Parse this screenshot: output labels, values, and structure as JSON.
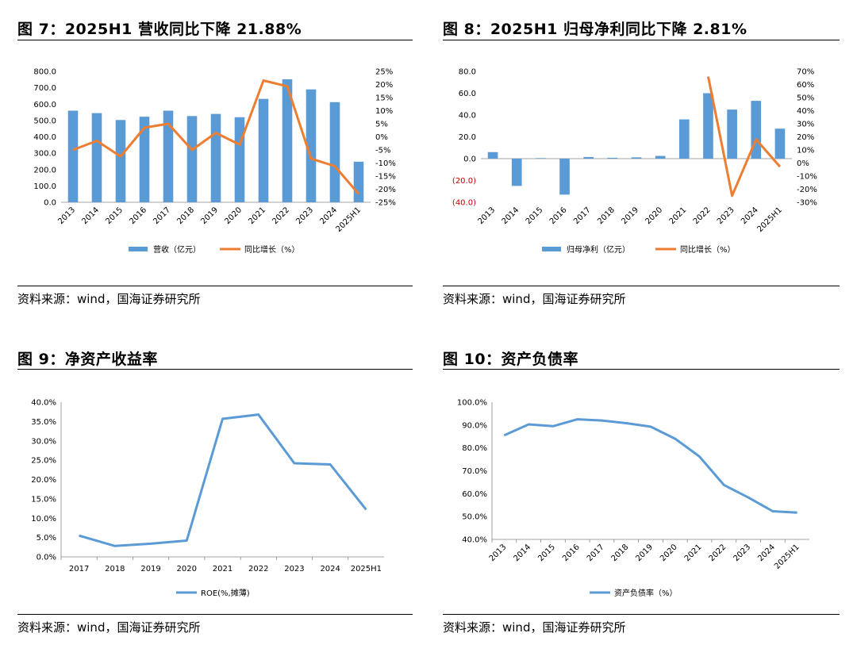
{
  "panels": [
    {
      "title": "图 7：2025H1 营收同比下降 21.88%",
      "source": "资料来源：wind，国海证券研究所",
      "chart_data": {
        "type": "bar",
        "categories": [
          "2013",
          "2014",
          "2015",
          "2016",
          "2017",
          "2018",
          "2019",
          "2020",
          "2021",
          "2022",
          "2023",
          "2024",
          "2025H1"
        ],
        "series": [
          {
            "name": "营收（亿元）",
            "type": "bar",
            "axis": "left",
            "color": "#5B9BD5",
            "values": [
              560,
              545,
              503,
              523,
              560,
              527,
              540,
              520,
              632,
              752,
              690,
              612,
              248
            ]
          },
          {
            "name": "同比增长（%）",
            "type": "line",
            "axis": "right",
            "color": "#ED7D31",
            "values": [
              -5,
              -1.5,
              -7.5,
              3.5,
              5,
              -5,
              1.5,
              -3,
              21.5,
              19.3,
              -8.3,
              -11.2,
              -21.88
            ]
          }
        ],
        "yleft": {
          "min": 0,
          "max": 800,
          "step": 100,
          "ticks": [
            "0.0",
            "100.0",
            "200.0",
            "300.0",
            "400.0",
            "500.0",
            "600.0",
            "700.0",
            "800.0"
          ]
        },
        "yright": {
          "min": -25,
          "max": 25,
          "step": 5,
          "ticks": [
            "-25%",
            "-20%",
            "-15%",
            "-10%",
            "-5%",
            "0%",
            "5%",
            "10%",
            "15%",
            "20%",
            "25%"
          ]
        }
      }
    },
    {
      "title": "图 8：2025H1 归母净利同比下降 2.81%",
      "source": "资料来源：wind，国海证券研究所",
      "chart_data": {
        "type": "bar",
        "categories": [
          "2013",
          "2014",
          "2015",
          "2016",
          "2017",
          "2018",
          "2019",
          "2020",
          "2021",
          "2022",
          "2023",
          "2024",
          "2025H1"
        ],
        "series": [
          {
            "name": "归母净利（亿元）",
            "type": "bar",
            "axis": "left",
            "color": "#5B9BD5",
            "values": [
              6,
              -25,
              0.5,
              -33,
              1.5,
              0.8,
              1.2,
              2.5,
              36,
              60,
              45,
              53,
              27.5
            ]
          },
          {
            "name": "同比增长（%）",
            "type": "line",
            "axis": "right",
            "color": "#ED7D31",
            "values": [
              null,
              null,
              null,
              null,
              null,
              null,
              null,
              null,
              null,
              66,
              -25,
              18,
              -2.81
            ]
          }
        ],
        "yleft": {
          "min": -40,
          "max": 80,
          "step": 20,
          "ticks": [
            "(40.0)",
            "(20.0)",
            "0.0",
            "20.0",
            "40.0",
            "60.0",
            "80.0"
          ]
        },
        "yright": {
          "min": -30,
          "max": 70,
          "step": 10,
          "ticks": [
            "-30%",
            "-20%",
            "-10%",
            "0%",
            "10%",
            "20%",
            "30%",
            "40%",
            "50%",
            "60%",
            "70%"
          ]
        }
      }
    },
    {
      "title": "图 9：净资产收益率",
      "source": "资料来源：wind，国海证券研究所",
      "chart_data": {
        "type": "line",
        "categories": [
          "2017",
          "2018",
          "2019",
          "2020",
          "2021",
          "2022",
          "2023",
          "2024",
          "2025H1"
        ],
        "series": [
          {
            "name": "ROE(%,摊薄)",
            "color": "#5B9BD5",
            "values": [
              5.5,
              2.8,
              3.4,
              4.2,
              35.7,
              36.8,
              24.2,
              23.9,
              12.2
            ]
          }
        ],
        "yleft": {
          "min": 0,
          "max": 40,
          "step": 5,
          "ticks": [
            "0.0%",
            "5.0%",
            "10.0%",
            "15.0%",
            "20.0%",
            "25.0%",
            "30.0%",
            "35.0%",
            "40.0%"
          ]
        }
      }
    },
    {
      "title": "图 10：资产负债率",
      "source": "资料来源：wind，国海证券研究所",
      "chart_data": {
        "type": "line",
        "categories": [
          "2013",
          "2014",
          "2015",
          "2016",
          "2017",
          "2018",
          "2019",
          "2020",
          "2021",
          "2022",
          "2023",
          "2024",
          "2025H1"
        ],
        "series": [
          {
            "name": "资产负债率（%）",
            "color": "#5B9BD5",
            "values": [
              85.5,
              90.3,
              89.5,
              92.5,
              92,
              90.8,
              89.3,
              84,
              76.2,
              63.8,
              58.3,
              52.3,
              51.7
            ]
          }
        ],
        "yleft": {
          "min": 40,
          "max": 100,
          "step": 10,
          "ticks": [
            "40.0%",
            "50.0%",
            "60.0%",
            "70.0%",
            "80.0%",
            "90.0%",
            "100.0%"
          ]
        }
      }
    }
  ]
}
